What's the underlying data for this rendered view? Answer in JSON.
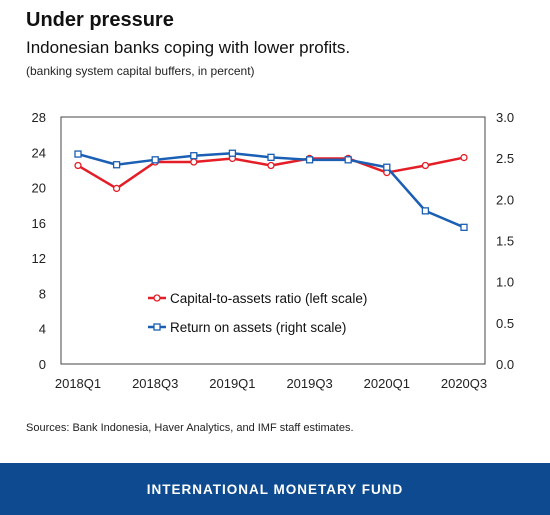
{
  "header": {
    "title": "Under pressure",
    "subtitle": "Indonesian banks coping with lower profits.",
    "note": "(banking system capital buffers, in percent)"
  },
  "chart_data": {
    "type": "line",
    "categories": [
      "2018Q1",
      "2018Q2",
      "2018Q3",
      "2018Q4",
      "2019Q1",
      "2019Q2",
      "2019Q3",
      "2019Q4",
      "2020Q1",
      "2020Q2",
      "2020Q3"
    ],
    "x_tick_labels": [
      "2018Q1",
      "2018Q3",
      "2019Q1",
      "2019Q3",
      "2020Q1",
      "2020Q3"
    ],
    "y_left": {
      "lim": [
        0,
        28
      ],
      "ticks": [
        "0",
        "4",
        "8",
        "12",
        "16",
        "20",
        "24",
        "28"
      ]
    },
    "y_right": {
      "lim": [
        0,
        3.0
      ],
      "ticks": [
        "0.0",
        "0.5",
        "1.0",
        "1.5",
        "2.0",
        "2.5",
        "3.0"
      ]
    },
    "grid": false,
    "legend_position": "lower-center",
    "series": [
      {
        "name": "Capital-to-assets ratio (left scale)",
        "axis": "left",
        "color": "#e41e26",
        "marker": "circle",
        "values": [
          22.5,
          19.9,
          22.9,
          22.9,
          23.3,
          22.5,
          23.3,
          23.3,
          21.7,
          22.5,
          23.4
        ]
      },
      {
        "name": "Return on assets (right scale)",
        "axis": "right",
        "color": "#1a5fb4",
        "marker": "square",
        "values": [
          2.55,
          2.42,
          2.48,
          2.53,
          2.56,
          2.51,
          2.48,
          2.48,
          2.39,
          1.86,
          1.66
        ]
      }
    ]
  },
  "sources": "Sources: Bank Indonesia, Haver Analytics, and IMF staff estimates.",
  "footer": {
    "label": "INTERNATIONAL MONETARY FUND",
    "color": "#0d4a8f"
  }
}
